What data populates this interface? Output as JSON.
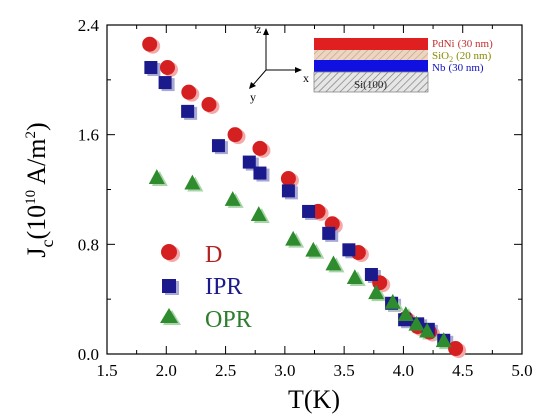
{
  "chart_data": {
    "type": "scatter",
    "xlabel": "T(K)",
    "ylabel_main": "J",
    "ylabel_sub": "c",
    "ylabel_rest": "(10",
    "ylabel_exp": "10",
    "ylabel_unit": " A/m",
    "ylabel_unit_exp": "2",
    "ylabel_close": ")",
    "xlim": [
      1.5,
      5.0
    ],
    "ylim": [
      0.0,
      2.4
    ],
    "xticks": [
      "1.5",
      "2.0",
      "2.5",
      "3.0",
      "3.5",
      "4.0",
      "4.5",
      "5.0"
    ],
    "yticks": [
      "0.0",
      "0.8",
      "1.6",
      "2.4"
    ],
    "series": [
      {
        "name": "D",
        "marker": "circle",
        "color": "#d42020",
        "shadow": "#f4a8a8",
        "x": [
          1.86,
          2.01,
          2.19,
          2.36,
          2.58,
          2.79,
          3.03,
          3.28,
          3.4,
          3.62,
          3.8,
          4.02,
          4.12,
          4.22,
          4.44
        ],
        "y": [
          2.26,
          2.09,
          1.91,
          1.82,
          1.6,
          1.5,
          1.28,
          1.04,
          0.95,
          0.74,
          0.52,
          0.26,
          0.2,
          0.16,
          0.04
        ]
      },
      {
        "name": "IPR",
        "marker": "square",
        "color": "#1a1a8c",
        "shadow": "#a8a8d4",
        "x": [
          1.87,
          1.99,
          2.18,
          2.44,
          2.7,
          2.79,
          3.03,
          3.2,
          3.37,
          3.54,
          3.73,
          3.9,
          4.01,
          4.12,
          4.21,
          4.34
        ],
        "y": [
          2.09,
          1.98,
          1.77,
          1.52,
          1.4,
          1.32,
          1.19,
          1.04,
          0.88,
          0.76,
          0.58,
          0.37,
          0.25,
          0.22,
          0.18,
          0.1
        ]
      },
      {
        "name": "OPR",
        "marker": "triangle",
        "color": "#2e8b2e",
        "shadow": "#a8d4a8",
        "x": [
          1.92,
          2.22,
          2.56,
          2.78,
          3.07,
          3.24,
          3.41,
          3.59,
          3.77,
          3.91,
          4.02,
          4.11,
          4.2,
          4.34
        ],
        "y": [
          1.29,
          1.25,
          1.13,
          1.02,
          0.84,
          0.76,
          0.66,
          0.56,
          0.45,
          0.38,
          0.29,
          0.22,
          0.17,
          0.1
        ]
      }
    ],
    "legend": [
      {
        "label": "D",
        "color": "#b22222"
      },
      {
        "label": "IPR",
        "color": "#1a1a8c"
      },
      {
        "label": "OPR",
        "color": "#2e7d2e"
      }
    ],
    "inset": {
      "axis_z": "z",
      "axis_y": "y",
      "axis_x": "x",
      "layers": [
        {
          "label": "PdNi",
          "thickness": "(30 nm)",
          "fill": "#e02020",
          "text_color": "#c03030"
        },
        {
          "label": "SiO",
          "sub": "2",
          "thickness": "(20 nm)",
          "fill": "#f2c7a0",
          "text_color": "#8a8a00"
        },
        {
          "label": "Nb",
          "thickness": "(30 nm)",
          "fill": "#1010e0",
          "text_color": "#1010c0"
        },
        {
          "label": "Si(100)",
          "fill": "#d8d8d8",
          "text_color": "#202020"
        }
      ]
    }
  }
}
